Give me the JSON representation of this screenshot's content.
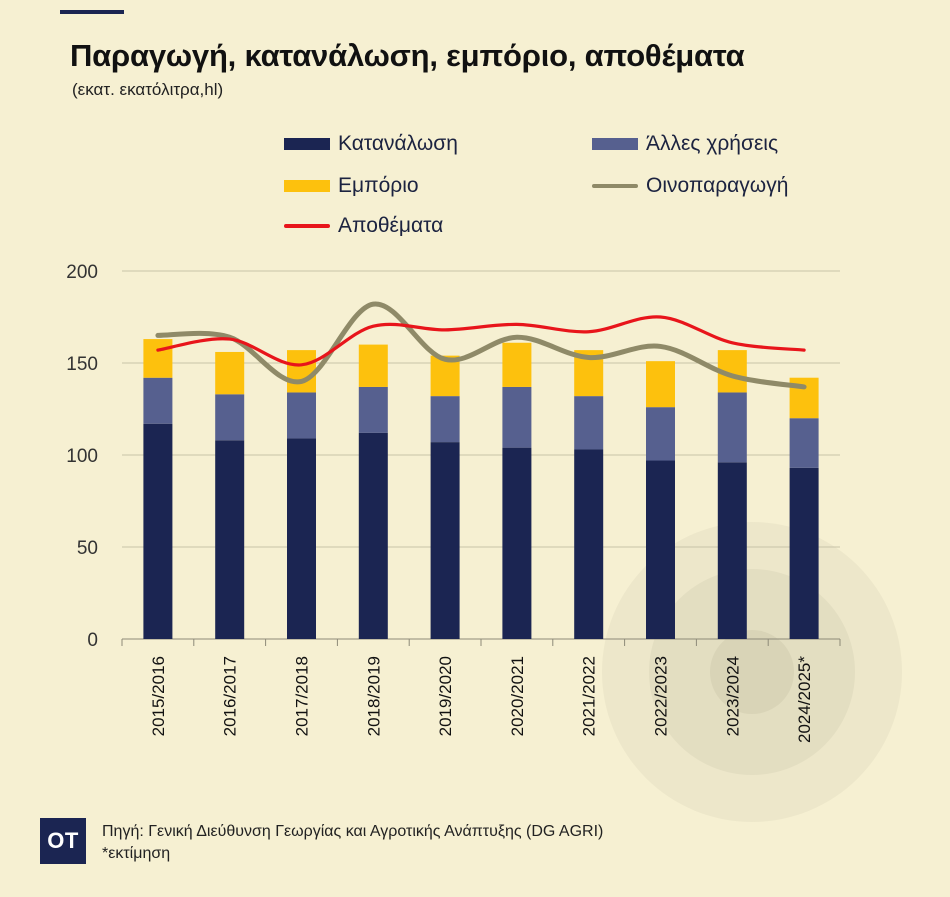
{
  "title": "Παραγωγή, κατανάλωση, εμπόριο, αποθέματα",
  "subtitle": "(εκατ. εκατόλιτρα,hl)",
  "legend": {
    "consumption": "Κατανάλωση",
    "other_uses": "Άλλες χρήσεις",
    "trade": "Εμπόριο",
    "production": "Οινοπαραγωγή",
    "stocks": "Αποθέματα"
  },
  "colors": {
    "background": "#f6f0d2",
    "consumption": "#1b2552",
    "other_uses": "#56608f",
    "trade": "#fdc10d",
    "production": "#8f8a68",
    "stocks": "#e8151b",
    "logo": "#1b2552"
  },
  "chart_data": {
    "type": "bar",
    "stacked": true,
    "categories": [
      "2015/2016",
      "2016/2017",
      "2017/2018",
      "2018/2019",
      "2019/2020",
      "2020/2021",
      "2021/2022",
      "2022/2023",
      "2023/2024",
      "2024/2025*"
    ],
    "series": [
      {
        "name": "Κατανάλωση",
        "type": "bar",
        "values": [
          117,
          108,
          109,
          112,
          107,
          104,
          103,
          97,
          96,
          93
        ]
      },
      {
        "name": "Άλλες χρήσεις",
        "type": "bar",
        "values": [
          25,
          25,
          25,
          25,
          25,
          33,
          29,
          29,
          38,
          27
        ]
      },
      {
        "name": "Εμπόριο",
        "type": "bar",
        "values": [
          21,
          23,
          23,
          23,
          22,
          24,
          25,
          25,
          23,
          22
        ]
      },
      {
        "name": "Οινοπαραγωγή",
        "type": "line",
        "values": [
          165,
          164,
          140,
          182,
          152,
          164,
          153,
          159,
          143,
          137
        ]
      },
      {
        "name": "Αποθέματα",
        "type": "line",
        "values": [
          157,
          163,
          149,
          170,
          168,
          171,
          167,
          175,
          161,
          157
        ]
      }
    ],
    "yticks": [
      0,
      50,
      100,
      150,
      200
    ],
    "ylim": [
      0,
      200
    ],
    "xlabel": "",
    "ylabel": "",
    "grid": true
  },
  "footer": {
    "logo": "OT",
    "source": "Πηγή: Γενική Διεύθυνση Γεωργίας και Αγροτικής Ανάπτυξης (DG AGRI)",
    "note": "*εκτίμηση"
  }
}
